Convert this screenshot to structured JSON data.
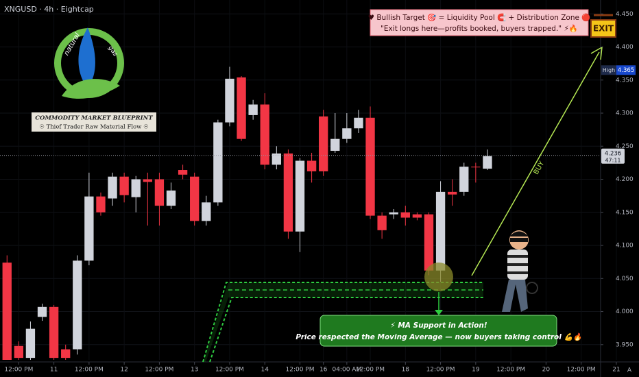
{
  "chart_data": {
    "type": "candlestick",
    "title": "XNGUSD · 4h · Eightcap",
    "up_color": "#d1d4dc",
    "down_color": "#f23645",
    "candles": [
      {
        "o": 4.074,
        "h": 4.085,
        "l": 3.927,
        "c": 3.927
      },
      {
        "o": 3.948,
        "h": 3.955,
        "l": 3.927,
        "c": 3.93
      },
      {
        "o": 3.93,
        "h": 3.985,
        "l": 3.927,
        "c": 3.974
      },
      {
        "o": 3.992,
        "h": 4.012,
        "l": 3.986,
        "c": 4.007
      },
      {
        "o": 4.007,
        "h": 4.01,
        "l": 3.927,
        "c": 3.93
      },
      {
        "o": 3.943,
        "h": 3.95,
        "l": 3.927,
        "c": 3.93
      },
      {
        "o": 3.943,
        "h": 4.085,
        "l": 3.935,
        "c": 4.077
      },
      {
        "o": 4.077,
        "h": 4.21,
        "l": 4.07,
        "c": 4.174
      },
      {
        "o": 4.174,
        "h": 4.18,
        "l": 4.145,
        "c": 4.15
      },
      {
        "o": 4.171,
        "h": 4.21,
        "l": 4.16,
        "c": 4.204
      },
      {
        "o": 4.204,
        "h": 4.21,
        "l": 4.165,
        "c": 4.176
      },
      {
        "o": 4.173,
        "h": 4.205,
        "l": 4.15,
        "c": 4.2
      },
      {
        "o": 4.2,
        "h": 4.21,
        "l": 4.13,
        "c": 4.196
      },
      {
        "o": 4.2,
        "h": 4.21,
        "l": 4.13,
        "c": 4.16
      },
      {
        "o": 4.16,
        "h": 4.195,
        "l": 4.155,
        "c": 4.183
      },
      {
        "o": 4.214,
        "h": 4.222,
        "l": 4.2,
        "c": 4.207
      },
      {
        "o": 4.204,
        "h": 4.21,
        "l": 4.13,
        "c": 4.137
      },
      {
        "o": 4.137,
        "h": 4.175,
        "l": 4.13,
        "c": 4.165
      },
      {
        "o": 4.165,
        "h": 4.29,
        "l": 4.16,
        "c": 4.286
      },
      {
        "o": 4.286,
        "h": 4.37,
        "l": 4.28,
        "c": 4.352
      },
      {
        "o": 4.354,
        "h": 4.356,
        "l": 4.258,
        "c": 4.261
      },
      {
        "o": 4.297,
        "h": 4.32,
        "l": 4.29,
        "c": 4.313
      },
      {
        "o": 4.313,
        "h": 4.33,
        "l": 4.215,
        "c": 4.222
      },
      {
        "o": 4.222,
        "h": 4.25,
        "l": 4.215,
        "c": 4.239
      },
      {
        "o": 4.239,
        "h": 4.245,
        "l": 4.11,
        "c": 4.121
      },
      {
        "o": 4.121,
        "h": 4.232,
        "l": 4.09,
        "c": 4.228
      },
      {
        "o": 4.228,
        "h": 4.24,
        "l": 4.195,
        "c": 4.212
      },
      {
        "o": 4.295,
        "h": 4.305,
        "l": 4.205,
        "c": 4.212
      },
      {
        "o": 4.243,
        "h": 4.3,
        "l": 4.24,
        "c": 4.261
      },
      {
        "o": 4.261,
        "h": 4.3,
        "l": 4.255,
        "c": 4.277
      },
      {
        "o": 4.277,
        "h": 4.305,
        "l": 4.27,
        "c": 4.293
      },
      {
        "o": 4.293,
        "h": 4.31,
        "l": 4.14,
        "c": 4.145
      },
      {
        "o": 4.145,
        "h": 4.15,
        "l": 4.11,
        "c": 4.123
      },
      {
        "o": 4.147,
        "h": 4.155,
        "l": 4.14,
        "c": 4.15
      },
      {
        "o": 4.15,
        "h": 4.16,
        "l": 4.13,
        "c": 4.142
      },
      {
        "o": 4.147,
        "h": 4.15,
        "l": 4.138,
        "c": 4.142
      },
      {
        "o": 4.147,
        "h": 4.15,
        "l": 4.055,
        "c": 4.062
      },
      {
        "o": 4.062,
        "h": 4.197,
        "l": 4.045,
        "c": 4.181
      },
      {
        "o": 4.181,
        "h": 4.2,
        "l": 4.16,
        "c": 4.177
      },
      {
        "o": 4.181,
        "h": 4.225,
        "l": 4.175,
        "c": 4.219
      },
      {
        "o": 4.219,
        "h": 4.225,
        "l": 4.195,
        "c": 4.218
      },
      {
        "o": 4.216,
        "h": 4.245,
        "l": 4.214,
        "c": 4.235
      }
    ],
    "xlim": [
      -0.6,
      50.6
    ],
    "xticks": [
      {
        "value": 1,
        "label": "12:00 PM"
      },
      {
        "value": 4,
        "label": "11"
      },
      {
        "value": 7,
        "label": "12:00 PM"
      },
      {
        "value": 10,
        "label": "12"
      },
      {
        "value": 13,
        "label": "12:00 PM"
      },
      {
        "value": 16,
        "label": "13"
      },
      {
        "value": 19,
        "label": "12:00 PM"
      },
      {
        "value": 22,
        "label": "14"
      },
      {
        "value": 25,
        "label": "12:00 PM"
      },
      {
        "value": 27,
        "label": "16"
      },
      {
        "value": 29,
        "label": "04:00 AM"
      },
      {
        "value": 31,
        "label": "12:00 PM"
      },
      {
        "value": 34,
        "label": "18"
      },
      {
        "value": 37,
        "label": "12:00 PM"
      },
      {
        "value": 40,
        "label": "19"
      },
      {
        "value": 43,
        "label": "12:00 PM"
      },
      {
        "value": 46,
        "label": "20"
      },
      {
        "value": 49,
        "label": "12:00 PM"
      },
      {
        "value": 52,
        "label": "21"
      }
    ],
    "ylim": [
      3.927,
      4.471
    ],
    "yticks": [
      {
        "value": 3.95,
        "label": "3.950"
      },
      {
        "value": 4,
        "label": "4.000"
      },
      {
        "value": 4.05,
        "label": "4.050"
      },
      {
        "value": 4.1,
        "label": "4.100"
      },
      {
        "value": 4.15,
        "label": "4.150"
      },
      {
        "value": 4.2,
        "label": "4.200"
      },
      {
        "value": 4.25,
        "label": "4.250"
      },
      {
        "value": 4.3,
        "label": "4.300"
      },
      {
        "value": 4.35,
        "label": "4.350"
      },
      {
        "value": 4.4,
        "label": "4.400"
      },
      {
        "value": 4.45,
        "label": "4.450"
      }
    ],
    "high": {
      "label": "High",
      "value": 4.365
    },
    "last": {
      "value": 4.236,
      "countdown": "47:11"
    },
    "axis_corner": "A"
  },
  "annotations": {
    "target_line1": "♥ Bullish Target 🎯 = Liquidity Pool 🧲 + Distribution Zone 🔴",
    "target_line2": "\"Exit longs here—profits booked, buyers trapped.\" ⚡🔥",
    "exit": "EXIT",
    "buy": "BUY",
    "ma_title": "⚡ MA Support in Action!",
    "ma_text": "Price respected the Moving Average — now buyers taking control 💪🔥",
    "logo_line1": "COMMODITY MARKET BLUEPRINT",
    "logo_line2": "☉ Thief Trader Raw Material Flow ☉",
    "logo_word1": "natural",
    "logo_word2": "gas"
  }
}
